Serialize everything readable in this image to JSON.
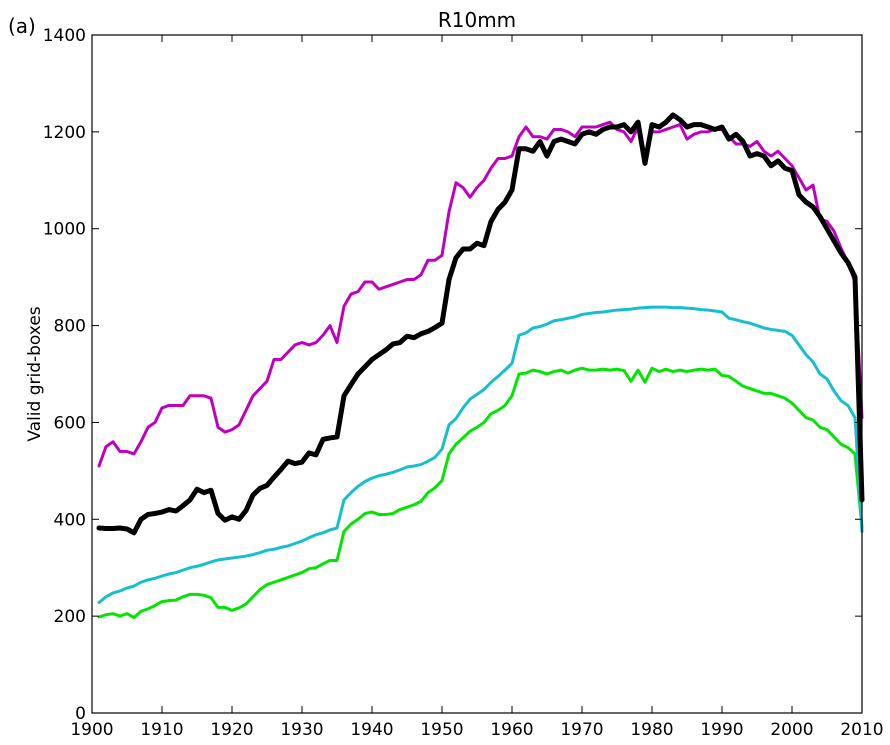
{
  "chart_data": {
    "type": "line",
    "panel_label": "(a)",
    "title": "R10mm",
    "xlabel": "",
    "ylabel": "Valid grid-boxes",
    "xlim": [
      1900,
      2010
    ],
    "ylim": [
      0,
      1400
    ],
    "xticks": [
      1900,
      1910,
      1920,
      1930,
      1940,
      1950,
      1960,
      1970,
      1980,
      1990,
      2000,
      2010
    ],
    "yticks": [
      0,
      200,
      400,
      600,
      800,
      1000,
      1200,
      1400
    ],
    "grid": false,
    "legend": "none",
    "x": [
      1901,
      1902,
      1903,
      1904,
      1905,
      1906,
      1907,
      1908,
      1909,
      1910,
      1911,
      1912,
      1913,
      1914,
      1915,
      1916,
      1917,
      1918,
      1919,
      1920,
      1921,
      1922,
      1923,
      1924,
      1925,
      1926,
      1927,
      1928,
      1929,
      1930,
      1931,
      1932,
      1933,
      1934,
      1935,
      1936,
      1937,
      1938,
      1939,
      1940,
      1941,
      1942,
      1943,
      1944,
      1945,
      1946,
      1947,
      1948,
      1949,
      1950,
      1951,
      1952,
      1953,
      1954,
      1955,
      1956,
      1957,
      1958,
      1959,
      1960,
      1961,
      1962,
      1963,
      1964,
      1965,
      1966,
      1967,
      1968,
      1969,
      1970,
      1971,
      1972,
      1973,
      1974,
      1975,
      1976,
      1977,
      1978,
      1979,
      1980,
      1981,
      1982,
      1983,
      1984,
      1985,
      1986,
      1987,
      1988,
      1989,
      1990,
      1991,
      1992,
      1993,
      1994,
      1995,
      1996,
      1997,
      1998,
      1999,
      2000,
      2001,
      2002,
      2003,
      2004,
      2005,
      2006,
      2007,
      2008,
      2009,
      2010
    ],
    "series": [
      {
        "color": "#bf00bf",
        "width": 3,
        "values": [
          510,
          550,
          560,
          540,
          540,
          535,
          560,
          590,
          600,
          630,
          635,
          635,
          635,
          655,
          655,
          655,
          650,
          590,
          580,
          585,
          595,
          625,
          655,
          670,
          685,
          730,
          730,
          745,
          760,
          765,
          760,
          765,
          780,
          800,
          765,
          840,
          865,
          870,
          890,
          890,
          875,
          880,
          885,
          890,
          895,
          895,
          905,
          935,
          935,
          945,
          1035,
          1095,
          1085,
          1065,
          1085,
          1100,
          1125,
          1145,
          1145,
          1150,
          1190,
          1210,
          1190,
          1190,
          1185,
          1205,
          1205,
          1200,
          1190,
          1210,
          1210,
          1210,
          1215,
          1220,
          1205,
          1200,
          1180,
          1210,
          1150,
          1200,
          1200,
          1205,
          1210,
          1215,
          1185,
          1195,
          1200,
          1200,
          1205,
          1205,
          1190,
          1175,
          1175,
          1170,
          1180,
          1160,
          1150,
          1160,
          1145,
          1130,
          1105,
          1080,
          1090,
          1020,
          1015,
          995,
          960,
          930,
          890,
          610
        ]
      },
      {
        "color": "#000000",
        "width": 5,
        "values": [
          382,
          381,
          381,
          382,
          380,
          372,
          400,
          410,
          412,
          415,
          420,
          417,
          428,
          440,
          462,
          455,
          460,
          412,
          398,
          405,
          400,
          418,
          450,
          464,
          470,
          487,
          503,
          520,
          515,
          518,
          537,
          533,
          565,
          568,
          570,
          655,
          678,
          700,
          715,
          730,
          740,
          750,
          762,
          765,
          778,
          775,
          783,
          788,
          796,
          805,
          895,
          940,
          958,
          958,
          970,
          965,
          1015,
          1040,
          1055,
          1080,
          1165,
          1165,
          1160,
          1180,
          1150,
          1180,
          1185,
          1180,
          1175,
          1195,
          1200,
          1195,
          1205,
          1210,
          1210,
          1215,
          1200,
          1220,
          1135,
          1215,
          1210,
          1220,
          1235,
          1225,
          1210,
          1215,
          1215,
          1210,
          1205,
          1210,
          1185,
          1195,
          1180,
          1150,
          1155,
          1150,
          1130,
          1140,
          1125,
          1120,
          1070,
          1055,
          1045,
          1025,
          1000,
          975,
          950,
          930,
          900,
          440
        ]
      },
      {
        "color": "#17becf",
        "width": 3,
        "values": [
          228,
          240,
          248,
          252,
          258,
          262,
          270,
          275,
          278,
          283,
          287,
          290,
          295,
          300,
          303,
          307,
          312,
          316,
          318,
          320,
          322,
          324,
          327,
          331,
          336,
          338,
          342,
          345,
          350,
          355,
          362,
          368,
          372,
          378,
          382,
          440,
          455,
          468,
          478,
          485,
          490,
          493,
          497,
          502,
          508,
          510,
          513,
          520,
          528,
          545,
          595,
          608,
          630,
          648,
          658,
          668,
          683,
          695,
          708,
          722,
          780,
          785,
          795,
          798,
          803,
          810,
          812,
          815,
          818,
          823,
          825,
          827,
          828,
          830,
          832,
          833,
          834,
          836,
          837,
          838,
          838,
          838,
          837,
          837,
          836,
          835,
          833,
          832,
          830,
          828,
          815,
          812,
          808,
          805,
          800,
          795,
          792,
          790,
          788,
          780,
          760,
          740,
          725,
          700,
          690,
          665,
          645,
          635,
          610,
          375
        ]
      },
      {
        "color": "#00e600",
        "width": 3,
        "values": [
          198,
          203,
          205,
          200,
          205,
          197,
          210,
          215,
          222,
          230,
          232,
          233,
          240,
          245,
          245,
          243,
          238,
          218,
          218,
          212,
          217,
          225,
          240,
          255,
          265,
          270,
          275,
          280,
          285,
          290,
          298,
          300,
          308,
          315,
          315,
          375,
          390,
          400,
          412,
          415,
          410,
          410,
          412,
          420,
          425,
          430,
          437,
          455,
          465,
          480,
          535,
          555,
          568,
          582,
          590,
          600,
          618,
          625,
          635,
          655,
          700,
          702,
          708,
          705,
          700,
          705,
          708,
          702,
          708,
          712,
          708,
          708,
          710,
          708,
          710,
          707,
          685,
          708,
          683,
          712,
          705,
          710,
          705,
          708,
          705,
          708,
          710,
          708,
          710,
          697,
          695,
          685,
          675,
          670,
          665,
          660,
          660,
          655,
          650,
          640,
          625,
          610,
          605,
          590,
          585,
          570,
          555,
          548,
          535,
          382
        ]
      }
    ]
  }
}
